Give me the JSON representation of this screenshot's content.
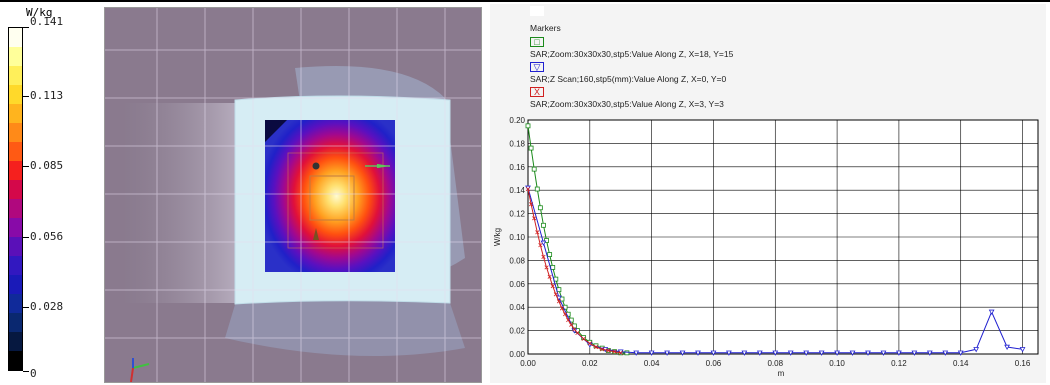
{
  "colorbar": {
    "unit": "W/kg",
    "max_label": "0.141",
    "labels": [
      "0.141",
      "0.113",
      "0.085",
      "0.056",
      "0.028",
      "0"
    ],
    "colors": [
      "#fffff0",
      "#ffff9a",
      "#ffef5a",
      "#ffd92a",
      "#ffb41e",
      "#ff8a18",
      "#ff5a14",
      "#f5201e",
      "#d4084a",
      "#b0087e",
      "#880aa8",
      "#5a10b8",
      "#3218c0",
      "#1a1ab8",
      "#102a9a",
      "#0a2870",
      "#061840",
      "#000000"
    ]
  },
  "view3d": {
    "grid_color": "#d8cce0",
    "background": "#8a7a8e",
    "phantom_color": "#b8d8e8",
    "device_color": "#d8eef4"
  },
  "chart_data": {
    "type": "line",
    "title": "",
    "xlabel": "m",
    "ylabel": "W/kg",
    "xlim": [
      0.0,
      0.165
    ],
    "ylim": [
      0.0,
      0.2
    ],
    "x_ticks": [
      "0.00",
      "0.02",
      "0.04",
      "0.06",
      "0.08",
      "0.10",
      "0.12",
      "0.14",
      "0.16"
    ],
    "y_ticks": [
      "0.00",
      "0.02",
      "0.04",
      "0.06",
      "0.08",
      "0.10",
      "0.12",
      "0.14",
      "0.16",
      "0.18",
      "0.20"
    ],
    "legend_header": "Markers",
    "series": [
      {
        "name": "SAR;Zoom:30x30x30,stp5:Value Along Z, X=18, Y=15",
        "marker": "square",
        "color": "#1a8a1a",
        "x": [
          0.0,
          0.001,
          0.002,
          0.003,
          0.004,
          0.005,
          0.006,
          0.007,
          0.008,
          0.009,
          0.01,
          0.011,
          0.012,
          0.013,
          0.014,
          0.015,
          0.016,
          0.018,
          0.02,
          0.022,
          0.024,
          0.026,
          0.028,
          0.03,
          0.032
        ],
        "y": [
          0.195,
          0.176,
          0.158,
          0.141,
          0.125,
          0.11,
          0.097,
          0.085,
          0.074,
          0.064,
          0.055,
          0.047,
          0.04,
          0.034,
          0.029,
          0.024,
          0.02,
          0.014,
          0.01,
          0.007,
          0.005,
          0.003,
          0.002,
          0.001,
          0.001
        ]
      },
      {
        "name": "SAR;Z Scan;160,stp5(mm):Value Along Z, X=0, Y=0",
        "marker": "triangle-down",
        "color": "#2020d0",
        "x": [
          0.0,
          0.005,
          0.01,
          0.015,
          0.02,
          0.025,
          0.03,
          0.035,
          0.04,
          0.045,
          0.05,
          0.055,
          0.06,
          0.065,
          0.07,
          0.075,
          0.08,
          0.085,
          0.09,
          0.095,
          0.1,
          0.105,
          0.11,
          0.115,
          0.12,
          0.125,
          0.13,
          0.135,
          0.14,
          0.145,
          0.15,
          0.155,
          0.16
        ],
        "y": [
          0.142,
          0.095,
          0.048,
          0.02,
          0.008,
          0.004,
          0.002,
          0.001,
          0.001,
          0.001,
          0.001,
          0.001,
          0.001,
          0.001,
          0.001,
          0.001,
          0.001,
          0.001,
          0.001,
          0.001,
          0.001,
          0.001,
          0.001,
          0.001,
          0.001,
          0.001,
          0.001,
          0.001,
          0.001,
          0.004,
          0.036,
          0.006,
          0.004
        ]
      },
      {
        "name": "SAR;Zoom:30x30x30,stp5:Value Along Z, X=3, Y=3",
        "marker": "x",
        "color": "#d02020",
        "x": [
          0.0,
          0.001,
          0.002,
          0.003,
          0.004,
          0.005,
          0.006,
          0.007,
          0.008,
          0.009,
          0.01,
          0.011,
          0.012,
          0.013,
          0.014,
          0.015,
          0.016,
          0.018,
          0.02,
          0.022,
          0.024,
          0.026,
          0.028,
          0.03
        ],
        "y": [
          0.141,
          0.128,
          0.116,
          0.104,
          0.093,
          0.083,
          0.074,
          0.066,
          0.058,
          0.051,
          0.045,
          0.039,
          0.034,
          0.029,
          0.025,
          0.021,
          0.018,
          0.013,
          0.009,
          0.006,
          0.004,
          0.003,
          0.002,
          0.001
        ]
      }
    ]
  }
}
